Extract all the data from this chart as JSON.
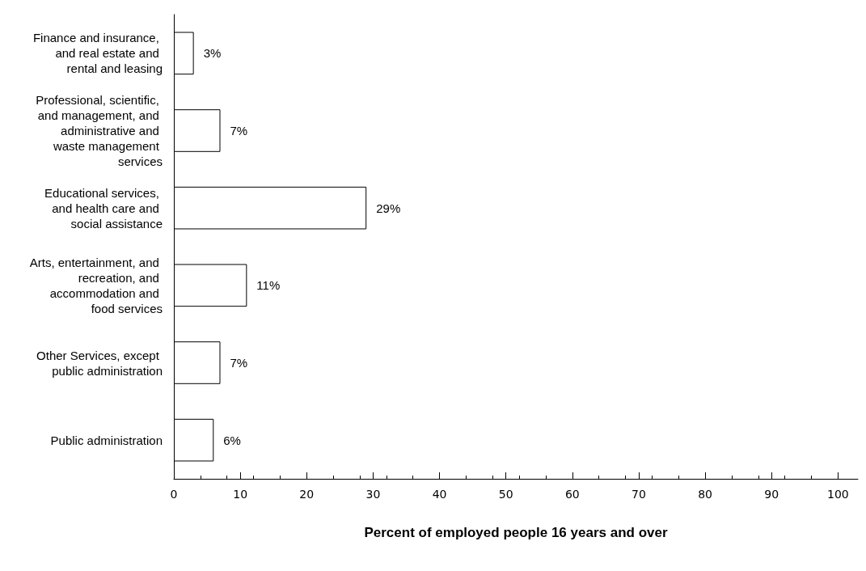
{
  "chart_data": {
    "type": "bar",
    "orientation": "horizontal",
    "xlabel": "Percent of employed people 16 years and over",
    "categories": [
      "Finance and insurance, and real estate and rental and leasing",
      "Professional, scientific, and management, and administrative and waste management services",
      "Educational services, and health care and social assistance",
      "Arts, entertainment, and recreation, and accommodation and food services",
      "Other Services, except public administration",
      "Public administration"
    ],
    "values": [
      3,
      7,
      29,
      11,
      7,
      6
    ],
    "value_labels": [
      "3%",
      "7%",
      "29%",
      "11%",
      "7%",
      "6%"
    ],
    "color": "#ffffff",
    "xlim": [
      0,
      103
    ],
    "xticks": [
      0,
      10,
      20,
      30,
      40,
      50,
      60,
      70,
      80,
      90,
      100
    ]
  }
}
